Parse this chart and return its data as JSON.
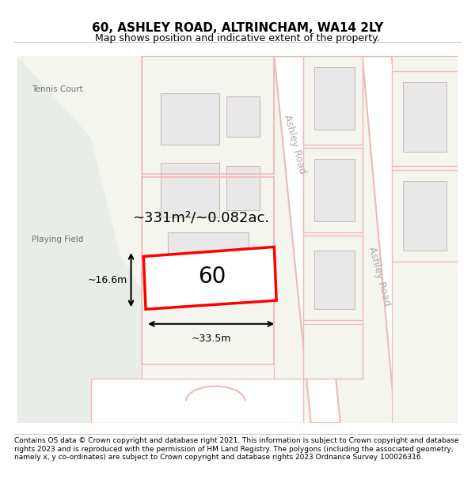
{
  "title": "60, ASHLEY ROAD, ALTRINCHAM, WA14 2LY",
  "subtitle": "Map shows position and indicative extent of the property.",
  "footer": "Contains OS data © Crown copyright and database right 2021. This information is subject to Crown copyright and database rights 2023 and is reproduced with the permission of HM Land Registry. The polygons (including the associated geometry, namely x, y co-ordinates) are subject to Crown copyright and database rights 2023 Ordnance Survey 100026316.",
  "bg_map_color": "#f5f5f0",
  "bg_left_color": "#e8ede8",
  "road_fill_color": "#ffffff",
  "road_stroke_color": "#f0b8b8",
  "building_fill_color": "#e8e8e8",
  "building_stroke_color": "#d0b8b8",
  "highlight_fill": "#ffffff",
  "highlight_stroke": "#ff0000",
  "area_text": "~331m²/~0.082ac.",
  "plot_number": "60",
  "dim_width": "~33.5m",
  "dim_height": "~16.6m",
  "label_tennis": "Tennis Court",
  "label_playing": "Playing Field",
  "label_ashley_road_1": "Ashley Road",
  "label_ashley_road_2": "Ashley Road"
}
